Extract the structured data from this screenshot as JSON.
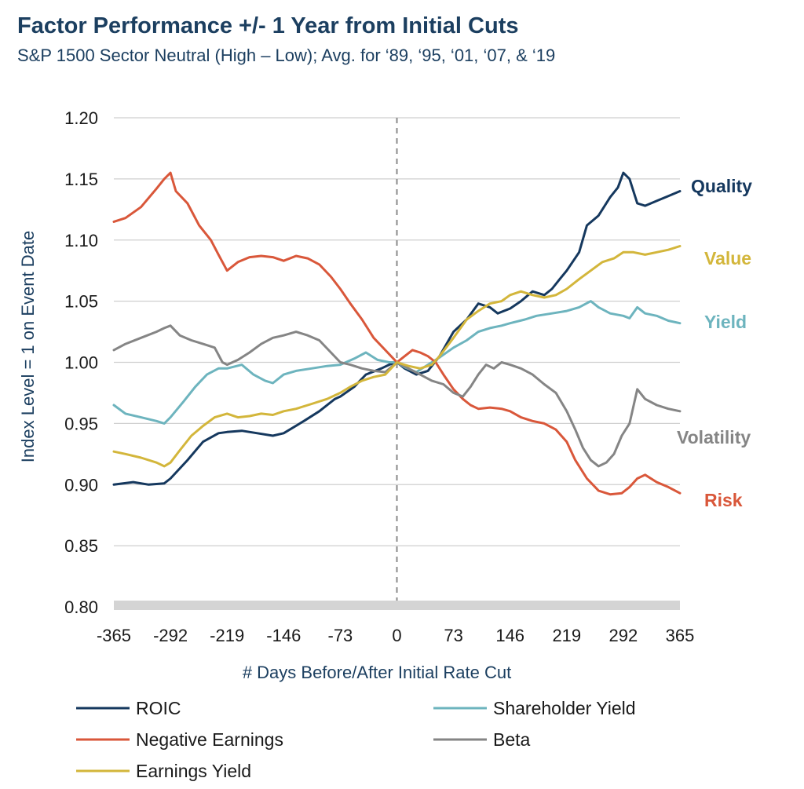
{
  "chart_data": {
    "type": "line",
    "title": "Factor Performance +/- 1 Year from Initial Cuts",
    "subtitle": "S&P 1500 Sector Neutral (High – Low); Avg. for ‘89, ‘95, ‘01, ‘07, & ‘19",
    "xlabel": "# Days Before/After Initial Rate Cut",
    "ylabel": "Index Level = 1 on  Event Date",
    "xlim": [
      -365,
      365
    ],
    "ylim": [
      0.8,
      1.2
    ],
    "x_ticks": [
      "-365",
      "-292",
      "-219",
      "-146",
      "-73",
      "0",
      "73",
      "146",
      "219",
      "292",
      "365"
    ],
    "y_ticks": [
      "1.20",
      "1.15",
      "1.10",
      "1.05",
      "1.00",
      "0.95",
      "0.90",
      "0.85",
      "0.80"
    ],
    "grid": "horizontal",
    "event_marker_x": 0,
    "legend_position": "bottom",
    "series": [
      {
        "name": "ROIC",
        "end_label": "Quality",
        "color": "#15385e",
        "points": [
          [
            -365,
            0.9
          ],
          [
            -340,
            0.902
          ],
          [
            -320,
            0.9
          ],
          [
            -300,
            0.901
          ],
          [
            -292,
            0.905
          ],
          [
            -270,
            0.92
          ],
          [
            -250,
            0.935
          ],
          [
            -230,
            0.942
          ],
          [
            -219,
            0.943
          ],
          [
            -200,
            0.944
          ],
          [
            -180,
            0.942
          ],
          [
            -160,
            0.94
          ],
          [
            -146,
            0.942
          ],
          [
            -120,
            0.952
          ],
          [
            -100,
            0.96
          ],
          [
            -80,
            0.97
          ],
          [
            -73,
            0.972
          ],
          [
            -55,
            0.98
          ],
          [
            -40,
            0.99
          ],
          [
            -20,
            0.995
          ],
          [
            -10,
            0.998
          ],
          [
            0,
            1.0
          ],
          [
            10,
            0.995
          ],
          [
            25,
            0.99
          ],
          [
            40,
            0.993
          ],
          [
            55,
            1.005
          ],
          [
            73,
            1.025
          ],
          [
            90,
            1.035
          ],
          [
            105,
            1.048
          ],
          [
            120,
            1.045
          ],
          [
            130,
            1.04
          ],
          [
            146,
            1.044
          ],
          [
            160,
            1.05
          ],
          [
            175,
            1.058
          ],
          [
            190,
            1.055
          ],
          [
            200,
            1.06
          ],
          [
            210,
            1.068
          ],
          [
            219,
            1.075
          ],
          [
            235,
            1.09
          ],
          [
            245,
            1.112
          ],
          [
            260,
            1.12
          ],
          [
            275,
            1.135
          ],
          [
            285,
            1.143
          ],
          [
            292,
            1.155
          ],
          [
            300,
            1.15
          ],
          [
            310,
            1.13
          ],
          [
            320,
            1.128
          ],
          [
            335,
            1.132
          ],
          [
            350,
            1.136
          ],
          [
            365,
            1.14
          ]
        ]
      },
      {
        "name": "Shareholder Yield",
        "end_label": "Yield",
        "color": "#6db4be",
        "points": [
          [
            -365,
            0.965
          ],
          [
            -350,
            0.958
          ],
          [
            -330,
            0.955
          ],
          [
            -310,
            0.952
          ],
          [
            -300,
            0.95
          ],
          [
            -292,
            0.955
          ],
          [
            -275,
            0.968
          ],
          [
            -260,
            0.98
          ],
          [
            -245,
            0.99
          ],
          [
            -230,
            0.995
          ],
          [
            -219,
            0.995
          ],
          [
            -200,
            0.998
          ],
          [
            -185,
            0.99
          ],
          [
            -170,
            0.985
          ],
          [
            -160,
            0.983
          ],
          [
            -146,
            0.99
          ],
          [
            -130,
            0.993
          ],
          [
            -110,
            0.995
          ],
          [
            -90,
            0.997
          ],
          [
            -73,
            0.998
          ],
          [
            -55,
            1.003
          ],
          [
            -40,
            1.008
          ],
          [
            -25,
            1.002
          ],
          [
            -10,
            1.0
          ],
          [
            0,
            1.0
          ],
          [
            10,
            0.996
          ],
          [
            25,
            0.992
          ],
          [
            40,
            0.998
          ],
          [
            55,
            1.004
          ],
          [
            73,
            1.012
          ],
          [
            90,
            1.018
          ],
          [
            105,
            1.025
          ],
          [
            120,
            1.028
          ],
          [
            135,
            1.03
          ],
          [
            146,
            1.032
          ],
          [
            165,
            1.035
          ],
          [
            180,
            1.038
          ],
          [
            200,
            1.04
          ],
          [
            219,
            1.042
          ],
          [
            235,
            1.045
          ],
          [
            250,
            1.05
          ],
          [
            260,
            1.045
          ],
          [
            275,
            1.04
          ],
          [
            292,
            1.038
          ],
          [
            300,
            1.036
          ],
          [
            310,
            1.045
          ],
          [
            320,
            1.04
          ],
          [
            335,
            1.038
          ],
          [
            350,
            1.034
          ],
          [
            365,
            1.032
          ]
        ]
      },
      {
        "name": "Negative Earnings",
        "end_label": "Risk",
        "color": "#d9573a",
        "points": [
          [
            -365,
            1.115
          ],
          [
            -350,
            1.118
          ],
          [
            -330,
            1.127
          ],
          [
            -310,
            1.142
          ],
          [
            -300,
            1.15
          ],
          [
            -292,
            1.155
          ],
          [
            -285,
            1.14
          ],
          [
            -270,
            1.13
          ],
          [
            -255,
            1.112
          ],
          [
            -240,
            1.1
          ],
          [
            -230,
            1.088
          ],
          [
            -219,
            1.075
          ],
          [
            -205,
            1.082
          ],
          [
            -190,
            1.086
          ],
          [
            -175,
            1.087
          ],
          [
            -160,
            1.086
          ],
          [
            -146,
            1.083
          ],
          [
            -130,
            1.087
          ],
          [
            -115,
            1.085
          ],
          [
            -100,
            1.08
          ],
          [
            -85,
            1.07
          ],
          [
            -73,
            1.06
          ],
          [
            -60,
            1.048
          ],
          [
            -45,
            1.035
          ],
          [
            -30,
            1.02
          ],
          [
            -15,
            1.01
          ],
          [
            0,
            1.0
          ],
          [
            10,
            1.005
          ],
          [
            20,
            1.01
          ],
          [
            30,
            1.008
          ],
          [
            40,
            1.005
          ],
          [
            50,
            1.0
          ],
          [
            60,
            0.99
          ],
          [
            73,
            0.978
          ],
          [
            85,
            0.97
          ],
          [
            95,
            0.965
          ],
          [
            105,
            0.962
          ],
          [
            120,
            0.963
          ],
          [
            135,
            0.962
          ],
          [
            146,
            0.96
          ],
          [
            160,
            0.955
          ],
          [
            175,
            0.952
          ],
          [
            190,
            0.95
          ],
          [
            205,
            0.945
          ],
          [
            219,
            0.935
          ],
          [
            230,
            0.92
          ],
          [
            245,
            0.905
          ],
          [
            260,
            0.895
          ],
          [
            275,
            0.892
          ],
          [
            290,
            0.893
          ],
          [
            300,
            0.898
          ],
          [
            310,
            0.905
          ],
          [
            320,
            0.908
          ],
          [
            335,
            0.902
          ],
          [
            350,
            0.898
          ],
          [
            365,
            0.893
          ]
        ]
      },
      {
        "name": "Beta",
        "end_label": "Volatility",
        "color": "#858585",
        "points": [
          [
            -365,
            1.01
          ],
          [
            -350,
            1.015
          ],
          [
            -330,
            1.02
          ],
          [
            -310,
            1.025
          ],
          [
            -300,
            1.028
          ],
          [
            -292,
            1.03
          ],
          [
            -280,
            1.022
          ],
          [
            -265,
            1.018
          ],
          [
            -250,
            1.015
          ],
          [
            -235,
            1.012
          ],
          [
            -225,
            1.0
          ],
          [
            -219,
            0.998
          ],
          [
            -205,
            1.002
          ],
          [
            -190,
            1.008
          ],
          [
            -175,
            1.015
          ],
          [
            -160,
            1.02
          ],
          [
            -146,
            1.022
          ],
          [
            -130,
            1.025
          ],
          [
            -115,
            1.022
          ],
          [
            -100,
            1.018
          ],
          [
            -85,
            1.008
          ],
          [
            -73,
            1.0
          ],
          [
            -60,
            0.998
          ],
          [
            -45,
            0.995
          ],
          [
            -30,
            0.993
          ],
          [
            -15,
            0.992
          ],
          [
            0,
            1.0
          ],
          [
            15,
            0.995
          ],
          [
            30,
            0.99
          ],
          [
            45,
            0.985
          ],
          [
            60,
            0.982
          ],
          [
            73,
            0.975
          ],
          [
            85,
            0.972
          ],
          [
            95,
            0.98
          ],
          [
            105,
            0.99
          ],
          [
            115,
            0.998
          ],
          [
            125,
            0.995
          ],
          [
            135,
            1.0
          ],
          [
            146,
            0.998
          ],
          [
            160,
            0.995
          ],
          [
            175,
            0.99
          ],
          [
            190,
            0.982
          ],
          [
            205,
            0.975
          ],
          [
            219,
            0.96
          ],
          [
            230,
            0.945
          ],
          [
            240,
            0.93
          ],
          [
            250,
            0.92
          ],
          [
            260,
            0.915
          ],
          [
            270,
            0.918
          ],
          [
            280,
            0.925
          ],
          [
            290,
            0.94
          ],
          [
            300,
            0.95
          ],
          [
            310,
            0.978
          ],
          [
            320,
            0.97
          ],
          [
            335,
            0.965
          ],
          [
            350,
            0.962
          ],
          [
            365,
            0.96
          ]
        ]
      },
      {
        "name": "Earnings Yield",
        "end_label": "Value",
        "color": "#d3b63b",
        "points": [
          [
            -365,
            0.927
          ],
          [
            -350,
            0.925
          ],
          [
            -330,
            0.922
          ],
          [
            -310,
            0.918
          ],
          [
            -300,
            0.915
          ],
          [
            -292,
            0.918
          ],
          [
            -280,
            0.928
          ],
          [
            -265,
            0.94
          ],
          [
            -250,
            0.948
          ],
          [
            -235,
            0.955
          ],
          [
            -219,
            0.958
          ],
          [
            -205,
            0.955
          ],
          [
            -190,
            0.956
          ],
          [
            -175,
            0.958
          ],
          [
            -160,
            0.957
          ],
          [
            -146,
            0.96
          ],
          [
            -130,
            0.962
          ],
          [
            -110,
            0.966
          ],
          [
            -90,
            0.97
          ],
          [
            -73,
            0.975
          ],
          [
            -60,
            0.98
          ],
          [
            -45,
            0.985
          ],
          [
            -30,
            0.988
          ],
          [
            -15,
            0.99
          ],
          [
            0,
            1.0
          ],
          [
            15,
            0.997
          ],
          [
            30,
            0.995
          ],
          [
            45,
            0.998
          ],
          [
            55,
            1.005
          ],
          [
            73,
            1.02
          ],
          [
            90,
            1.035
          ],
          [
            105,
            1.042
          ],
          [
            120,
            1.048
          ],
          [
            135,
            1.05
          ],
          [
            146,
            1.055
          ],
          [
            160,
            1.058
          ],
          [
            175,
            1.055
          ],
          [
            190,
            1.053
          ],
          [
            205,
            1.055
          ],
          [
            219,
            1.06
          ],
          [
            235,
            1.068
          ],
          [
            250,
            1.075
          ],
          [
            265,
            1.082
          ],
          [
            280,
            1.085
          ],
          [
            292,
            1.09
          ],
          [
            305,
            1.09
          ],
          [
            320,
            1.088
          ],
          [
            335,
            1.09
          ],
          [
            350,
            1.092
          ],
          [
            365,
            1.095
          ]
        ]
      }
    ],
    "legend_order": [
      "ROIC",
      "Shareholder Yield",
      "Negative Earnings",
      "Beta",
      "Earnings Yield"
    ]
  }
}
